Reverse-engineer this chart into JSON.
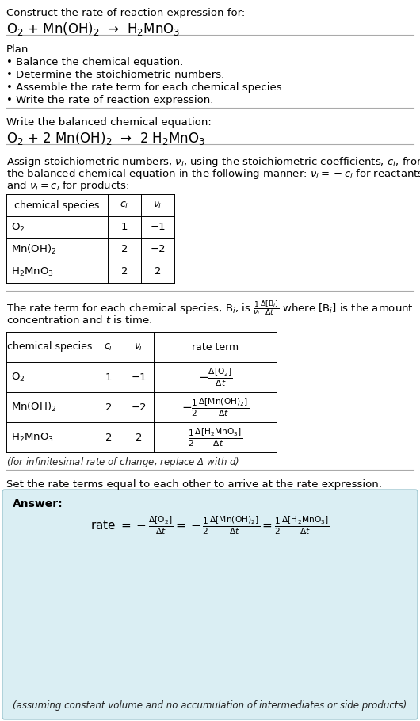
{
  "bg_color": "#ffffff",
  "text_color": "#000000",
  "answer_bg": "#daeef3",
  "answer_border": "#9ec6d0",
  "title_text": "Construct the rate of reaction expression for:",
  "reaction_unbalanced": "O$_2$ + Mn(OH)$_2$  →  H$_2$MnO$_3$",
  "plan_header": "Plan:",
  "plan_items": [
    "• Balance the chemical equation.",
    "• Determine the stoichiometric numbers.",
    "• Assemble the rate term for each chemical species.",
    "• Write the rate of reaction expression."
  ],
  "balanced_header": "Write the balanced chemical equation:",
  "reaction_balanced": "O$_2$ + 2 Mn(OH)$_2$  →  2 H$_2$MnO$_3$",
  "stoich_intro_lines": [
    "Assign stoichiometric numbers, $\\nu_i$, using the stoichiometric coefficients, $c_i$, from",
    "the balanced chemical equation in the following manner: $\\nu_i = -c_i$ for reactants",
    "and $\\nu_i = c_i$ for products:"
  ],
  "table1_headers": [
    "chemical species",
    "$c_i$",
    "$\\nu_i$"
  ],
  "table1_rows": [
    [
      "O$_2$",
      "1",
      "−1"
    ],
    [
      "Mn(OH)$_2$",
      "2",
      "−2"
    ],
    [
      "H$_2$MnO$_3$",
      "2",
      "2"
    ]
  ],
  "rate_intro_lines": [
    "The rate term for each chemical species, B$_i$, is $\\frac{1}{\\nu_i}\\frac{\\Delta[\\mathrm{B}_i]}{\\Delta t}$ where [B$_i$] is the amount",
    "concentration and $t$ is time:"
  ],
  "table2_headers": [
    "chemical species",
    "$c_i$",
    "$\\nu_i$",
    "rate term"
  ],
  "table2_rows": [
    [
      "O$_2$",
      "1",
      "−1",
      "$-\\frac{\\Delta[\\mathrm{O_2}]}{\\Delta t}$"
    ],
    [
      "Mn(OH)$_2$",
      "2",
      "−2",
      "$-\\frac{1}{2}\\frac{\\Delta[\\mathrm{Mn(OH)_2}]}{\\Delta t}$"
    ],
    [
      "H$_2$MnO$_3$",
      "2",
      "2",
      "$\\frac{1}{2}\\frac{\\Delta[\\mathrm{H_2MnO_3}]}{\\Delta t}$"
    ]
  ],
  "infinitesimal_note": "(for infinitesimal rate of change, replace Δ with $d$)",
  "answer_intro": "Set the rate terms equal to each other to arrive at the rate expression:",
  "answer_label": "Answer:",
  "answer_eq": "rate $= -\\frac{\\Delta[\\mathrm{O_2}]}{\\Delta t} = -\\frac{1}{2}\\frac{\\Delta[\\mathrm{Mn(OH)_2}]}{\\Delta t} = \\frac{1}{2}\\frac{\\Delta[\\mathrm{H_2MnO_3}]}{\\Delta t}$",
  "answer_note": "(assuming constant volume and no accumulation of intermediates or side products)"
}
